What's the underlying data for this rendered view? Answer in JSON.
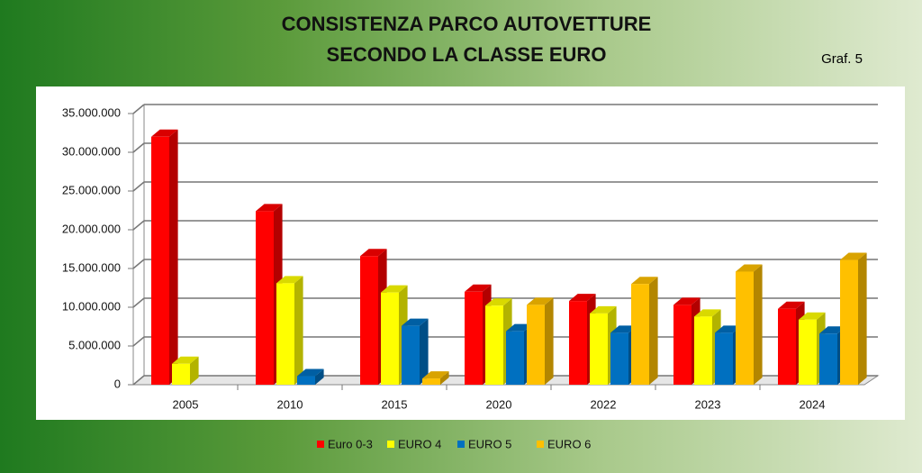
{
  "chart_data": {
    "type": "bar3d",
    "title": "CONSISTENZA PARCO AUTOVETTURE",
    "subtitle": "SECONDO LA CLASSE EURO",
    "annotation": "Graf. 5",
    "categories": [
      "2005",
      "2010",
      "2015",
      "2020",
      "2022",
      "2023",
      "2024"
    ],
    "series": [
      {
        "name": "Euro 0-3",
        "color": "#ff0000",
        "values": [
          32000000,
          22400000,
          16600000,
          12000000,
          10800000,
          10300000,
          9800000
        ]
      },
      {
        "name": "EURO 4",
        "color": "#ffff00",
        "values": [
          2700000,
          13100000,
          11900000,
          10200000,
          9200000,
          8800000,
          8400000
        ]
      },
      {
        "name": "EURO 5",
        "color": "#0070c0",
        "values": [
          null,
          1100000,
          7600000,
          6900000,
          6700000,
          6700000,
          6600000
        ]
      },
      {
        "name": "EURO 6",
        "color": "#ffc000",
        "values": [
          null,
          null,
          800000,
          10300000,
          13000000,
          14600000,
          16100000
        ]
      }
    ],
    "ylim": [
      0,
      35000000
    ],
    "yticks": [
      0,
      {
        "value": 5000000,
        "label": "5.000.000"
      },
      {
        "value": 10000000,
        "label": "10.000.000"
      },
      {
        "value": 15000000,
        "label": "15.000.000"
      },
      {
        "value": 20000000,
        "label": "20.000.000"
      },
      {
        "value": 25000000,
        "label": "25.000.000"
      },
      {
        "value": 30000000,
        "label": "30.000.000"
      },
      {
        "value": 35000000,
        "label": "35.000.000"
      }
    ],
    "grid": true
  }
}
